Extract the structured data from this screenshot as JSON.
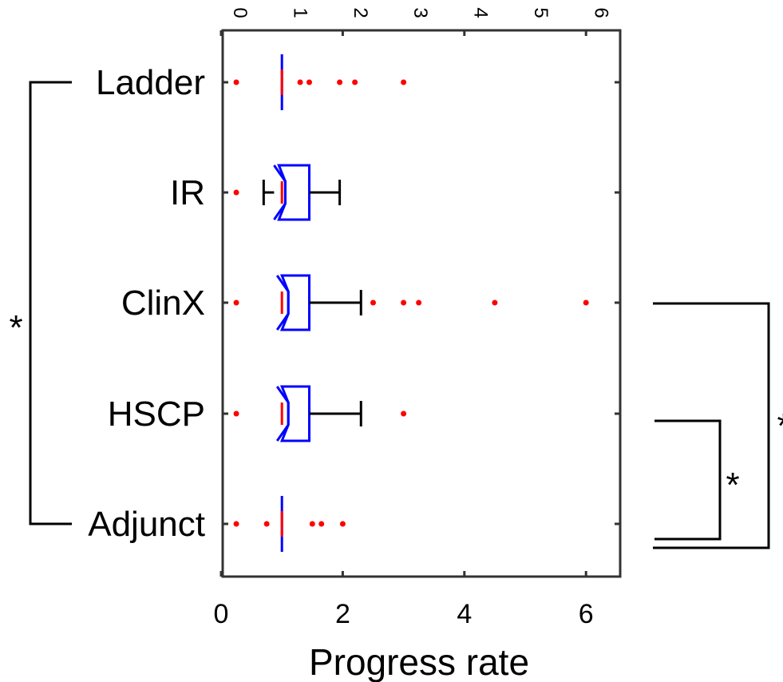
{
  "chart_data": {
    "type": "boxplot",
    "orientation": "horizontal",
    "categories": [
      "Ladder",
      "IR",
      "ClinX",
      "HSCP",
      "Adjunct"
    ],
    "xlabel": "Progress rate",
    "xlim": [
      0,
      6.3
    ],
    "x_ticks": [
      "0",
      "2",
      "4",
      "6"
    ],
    "top_ticks": [
      "0",
      "1",
      "2",
      "3",
      "4",
      "5",
      "6"
    ],
    "grid": false,
    "boxes": [
      {
        "name": "Ladder",
        "whisker_low": 1.0,
        "q1": 1.0,
        "median": 1.0,
        "q3": 1.0,
        "whisker_high": 1.0,
        "notch": [
          0.9,
          1.1
        ],
        "outliers": [
          0.25,
          1.3,
          1.45,
          1.95,
          2.2,
          3.0
        ]
      },
      {
        "name": "IR",
        "whisker_low": 0.7,
        "q1": 0.95,
        "median": 1.0,
        "q3": 1.45,
        "whisker_high": 1.95,
        "notch": [
          0.95,
          1.05
        ],
        "outliers": [
          0.25
        ]
      },
      {
        "name": "ClinX",
        "whisker_low": 1.0,
        "q1": 1.0,
        "median": 1.0,
        "q3": 1.45,
        "whisker_high": 2.3,
        "notch": [
          1.0,
          1.05
        ],
        "outliers": [
          0.25,
          2.5,
          3.0,
          3.25,
          4.5,
          6.0
        ]
      },
      {
        "name": "HSCP",
        "whisker_low": 1.0,
        "q1": 1.0,
        "median": 1.0,
        "q3": 1.45,
        "whisker_high": 2.3,
        "notch": [
          1.0,
          1.05
        ],
        "outliers": [
          0.25,
          3.0
        ]
      },
      {
        "name": "Adjunct",
        "whisker_low": 1.0,
        "q1": 1.0,
        "median": 1.0,
        "q3": 1.0,
        "whisker_high": 1.0,
        "notch": [
          0.9,
          1.1
        ],
        "outliers": [
          0.25,
          0.75,
          1.5,
          1.65,
          2.0
        ]
      }
    ],
    "significance": [
      {
        "from": "Ladder",
        "to": "Adjunct",
        "side": "left",
        "label": "*"
      },
      {
        "from": "HSCP",
        "to": "Adjunct",
        "side": "right",
        "label": "*"
      },
      {
        "from": "ClinX",
        "to": "Adjunct",
        "side": "right",
        "label": "*"
      }
    ],
    "colors": {
      "box": "#0000ff",
      "median": "#ff0000",
      "whisker": "#000000",
      "outlier": "#ff0000",
      "frame": "#333333"
    }
  }
}
